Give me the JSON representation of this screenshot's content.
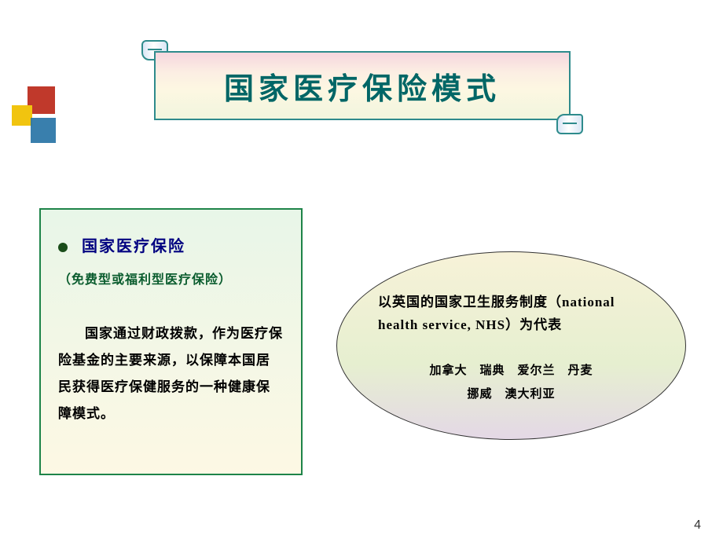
{
  "title": "国家医疗保险模式",
  "deco_colors": {
    "red": "#c0392b",
    "yellow": "#f1c40f",
    "blue": "#2874a6"
  },
  "left_box": {
    "heading": "国家医疗保险",
    "subtitle": "（免费型或福利型医疗保险）",
    "body": "国家通过财政拨款，作为医疗保险基金的主要来源，以保障本国居民获得医疗保健服务的一种健康保障模式。"
  },
  "ellipse": {
    "lead": "以英国的国家卫生服务制度（national health service, NHS）为代表",
    "countries_line1": "加拿大　瑞典　爱尔兰　丹麦",
    "countries_line2": "挪威　澳大利亚"
  },
  "page_number": "4"
}
